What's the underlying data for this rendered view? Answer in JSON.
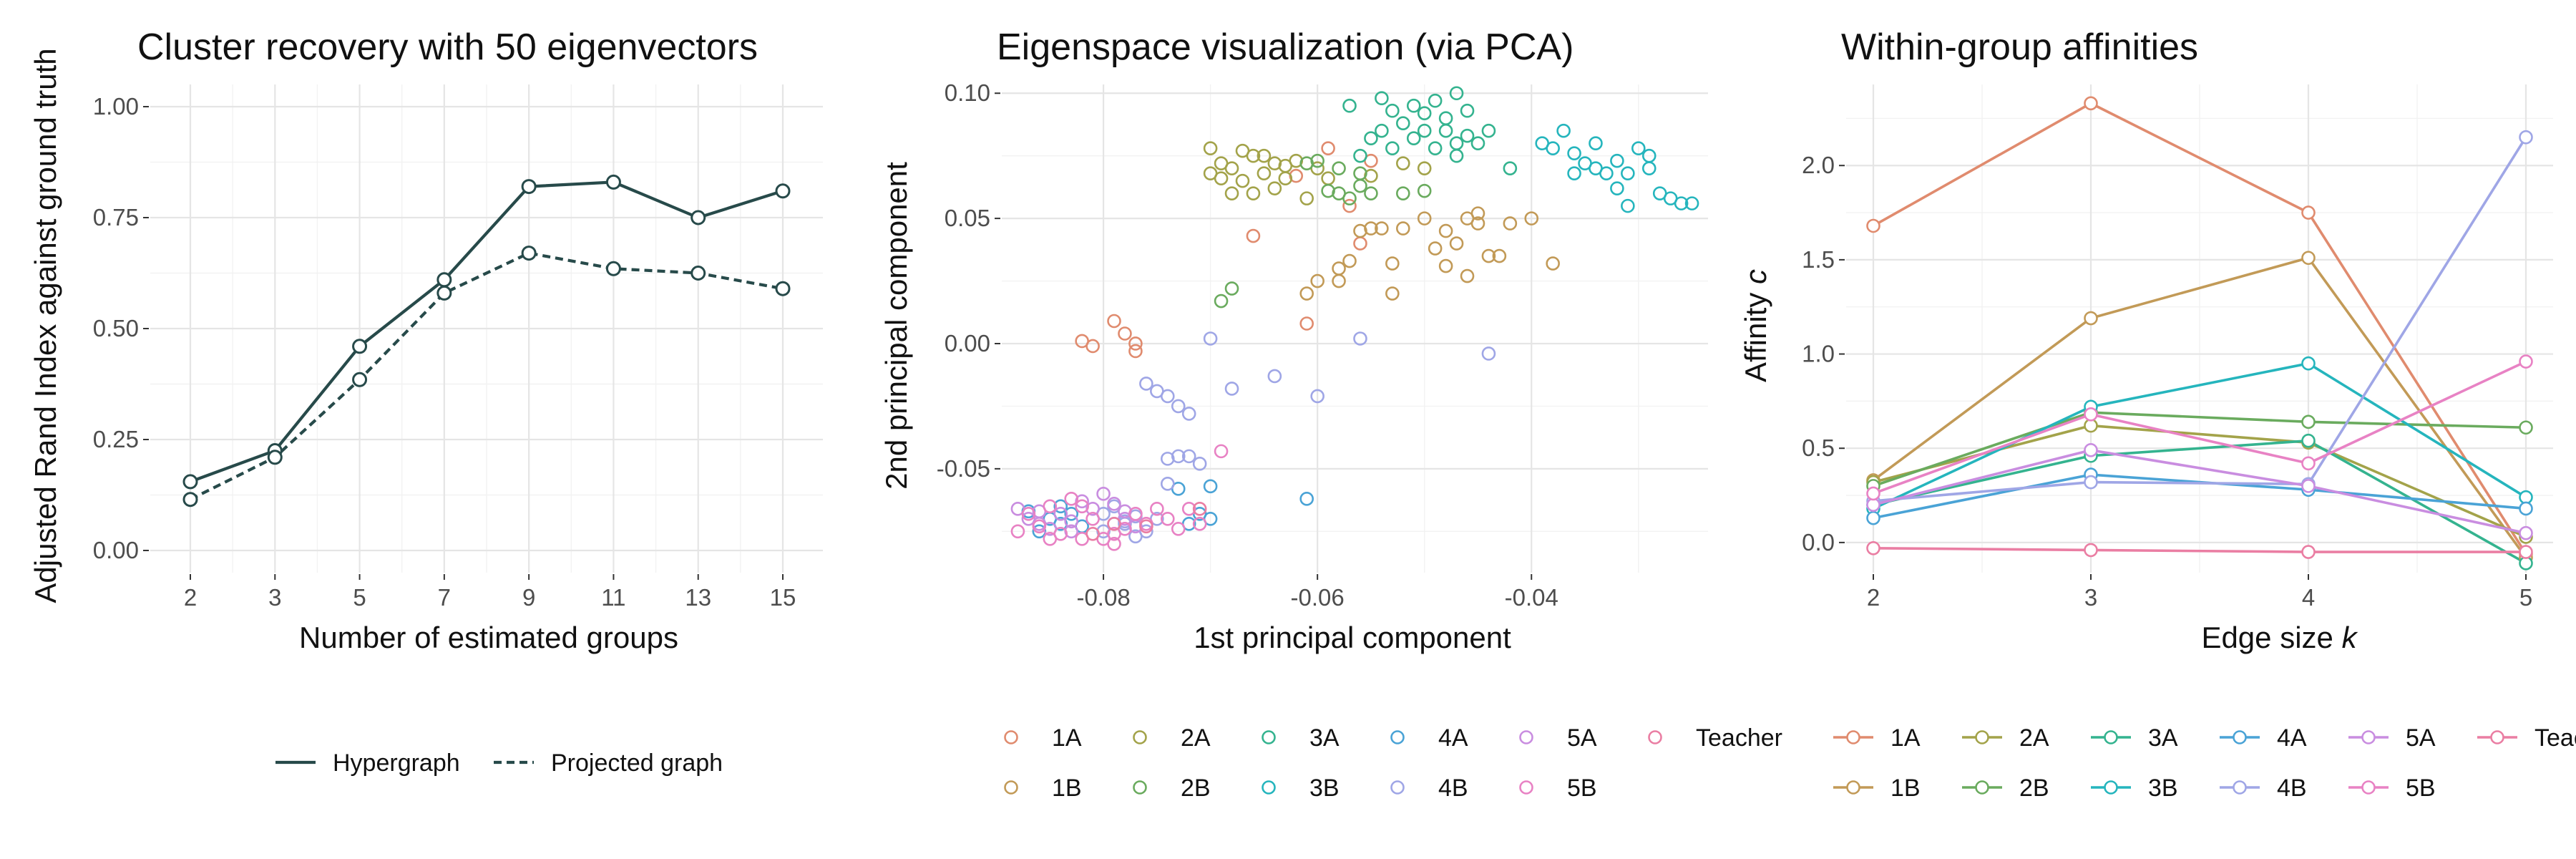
{
  "chart_data": [
    {
      "type": "line",
      "title": "Cluster recovery with 50 eigenvectors",
      "xlabel": "Number of estimated groups",
      "ylabel": "Adjusted Rand Index against ground truth",
      "categories": [
        "2",
        "3",
        "5",
        "7",
        "9",
        "11",
        "13",
        "15"
      ],
      "ylim": [
        -0.05,
        1.05
      ],
      "yticks": [
        "0.00",
        "0.25",
        "0.50",
        "0.75",
        "1.00"
      ],
      "highlight_category": "11",
      "color": "#274a4a",
      "grid": true,
      "legend_position": "bottom",
      "series": [
        {
          "name": "Hypergraph",
          "line": "solid",
          "values": [
            0.155,
            0.225,
            0.46,
            0.61,
            0.82,
            0.83,
            0.75,
            0.81
          ]
        },
        {
          "name": "Projected graph",
          "line": "dashed",
          "values": [
            0.115,
            0.21,
            0.385,
            0.58,
            0.67,
            0.635,
            0.625,
            0.59
          ]
        }
      ]
    },
    {
      "type": "scatter",
      "title": "Eigenspace visualization (via PCA)",
      "xlabel": "1st principal component",
      "ylabel": "2nd principal component",
      "xlim": [
        -0.0895,
        -0.0235
      ],
      "ylim": [
        -0.0915,
        0.1035
      ],
      "xticks": [
        "-0.08",
        "-0.06",
        "-0.04"
      ],
      "yticks": [
        "-0.05",
        "0.00",
        "0.05",
        "0.10"
      ],
      "grid": true,
      "legend_position": "bottom",
      "series": [
        {
          "name": "1A",
          "color": "#e08b6e",
          "points": [
            [
              -0.082,
              0.001
            ],
            [
              -0.079,
              0.009
            ],
            [
              -0.078,
              0.004
            ],
            [
              -0.077,
              0.0
            ],
            [
              -0.077,
              -0.003
            ],
            [
              -0.081,
              -0.001
            ],
            [
              -0.059,
              0.078
            ],
            [
              -0.057,
              0.055
            ],
            [
              -0.055,
              0.073
            ],
            [
              -0.061,
              0.008
            ],
            [
              -0.056,
              0.04
            ],
            [
              -0.066,
              0.043
            ],
            [
              -0.062,
              0.067
            ]
          ]
        },
        {
          "name": "1B",
          "color": "#c29a57",
          "points": [
            [
              -0.055,
              0.046
            ],
            [
              -0.052,
              0.046
            ],
            [
              -0.054,
              0.046
            ],
            [
              -0.048,
              0.045
            ],
            [
              -0.046,
              0.05
            ],
            [
              -0.045,
              0.048
            ],
            [
              -0.042,
              0.048
            ],
            [
              -0.044,
              0.035
            ],
            [
              -0.046,
              0.027
            ],
            [
              -0.049,
              0.038
            ],
            [
              -0.053,
              0.032
            ],
            [
              -0.058,
              0.03
            ],
            [
              -0.058,
              0.025
            ],
            [
              -0.061,
              0.02
            ],
            [
              -0.053,
              0.02
            ],
            [
              -0.038,
              0.032
            ],
            [
              -0.04,
              0.05
            ],
            [
              -0.047,
              0.04
            ],
            [
              -0.05,
              0.05
            ],
            [
              -0.043,
              0.035
            ],
            [
              -0.045,
              0.052
            ],
            [
              -0.056,
              0.045
            ],
            [
              -0.057,
              0.033
            ],
            [
              -0.06,
              0.025
            ],
            [
              -0.048,
              0.031
            ]
          ]
        },
        {
          "name": "2A",
          "color": "#a3a34a",
          "points": [
            [
              -0.07,
              0.078
            ],
            [
              -0.069,
              0.072
            ],
            [
              -0.068,
              0.07
            ],
            [
              -0.066,
              0.075
            ],
            [
              -0.065,
              0.068
            ],
            [
              -0.064,
              0.072
            ],
            [
              -0.063,
              0.066
            ],
            [
              -0.062,
              0.073
            ],
            [
              -0.06,
              0.07
            ],
            [
              -0.059,
              0.066
            ],
            [
              -0.067,
              0.065
            ],
            [
              -0.068,
              0.06
            ],
            [
              -0.066,
              0.06
            ],
            [
              -0.069,
              0.066
            ],
            [
              -0.064,
              0.062
            ],
            [
              -0.052,
              0.072
            ],
            [
              -0.05,
              0.07
            ],
            [
              -0.055,
              0.067
            ],
            [
              -0.061,
              0.058
            ],
            [
              -0.067,
              0.077
            ],
            [
              -0.065,
              0.075
            ],
            [
              -0.063,
              0.071
            ],
            [
              -0.07,
              0.068
            ]
          ]
        },
        {
          "name": "2B",
          "color": "#6aab5e",
          "points": [
            [
              -0.06,
              0.073
            ],
            [
              -0.058,
              0.07
            ],
            [
              -0.059,
              0.061
            ],
            [
              -0.058,
              0.06
            ],
            [
              -0.056,
              0.063
            ],
            [
              -0.057,
              0.058
            ],
            [
              -0.055,
              0.06
            ],
            [
              -0.052,
              0.06
            ],
            [
              -0.069,
              0.017
            ],
            [
              -0.068,
              0.022
            ],
            [
              -0.061,
              0.072
            ],
            [
              -0.056,
              0.068
            ],
            [
              -0.05,
              0.061
            ]
          ]
        },
        {
          "name": "3A",
          "color": "#34b38f",
          "points": [
            [
              -0.057,
              0.095
            ],
            [
              -0.054,
              0.098
            ],
            [
              -0.053,
              0.093
            ],
            [
              -0.052,
              0.088
            ],
            [
              -0.05,
              0.092
            ],
            [
              -0.049,
              0.097
            ],
            [
              -0.047,
              0.1
            ],
            [
              -0.048,
              0.085
            ],
            [
              -0.05,
              0.085
            ],
            [
              -0.046,
              0.083
            ],
            [
              -0.045,
              0.08
            ],
            [
              -0.047,
              0.08
            ],
            [
              -0.049,
              0.078
            ],
            [
              -0.051,
              0.082
            ],
            [
              -0.053,
              0.078
            ],
            [
              -0.055,
              0.082
            ],
            [
              -0.048,
              0.09
            ],
            [
              -0.044,
              0.085
            ],
            [
              -0.042,
              0.07
            ],
            [
              -0.046,
              0.093
            ],
            [
              -0.051,
              0.095
            ],
            [
              -0.054,
              0.085
            ],
            [
              -0.047,
              0.075
            ],
            [
              -0.056,
              0.075
            ]
          ]
        },
        {
          "name": "3B",
          "color": "#25b5bd",
          "points": [
            [
              -0.039,
              0.08
            ],
            [
              -0.037,
              0.085
            ],
            [
              -0.036,
              0.076
            ],
            [
              -0.035,
              0.072
            ],
            [
              -0.034,
              0.07
            ],
            [
              -0.033,
              0.068
            ],
            [
              -0.032,
              0.073
            ],
            [
              -0.031,
              0.068
            ],
            [
              -0.03,
              0.078
            ],
            [
              -0.029,
              0.075
            ],
            [
              -0.028,
              0.06
            ],
            [
              -0.027,
              0.058
            ],
            [
              -0.026,
              0.056
            ],
            [
              -0.025,
              0.056
            ],
            [
              -0.031,
              0.055
            ],
            [
              -0.036,
              0.068
            ],
            [
              -0.038,
              0.078
            ],
            [
              -0.034,
              0.08
            ],
            [
              -0.032,
              0.062
            ],
            [
              -0.029,
              0.07
            ]
          ]
        },
        {
          "name": "4A",
          "color": "#4aa3d6",
          "points": [
            [
              -0.087,
              -0.067
            ],
            [
              -0.085,
              -0.07
            ],
            [
              -0.084,
              -0.072
            ],
            [
              -0.083,
              -0.068
            ],
            [
              -0.082,
              -0.073
            ],
            [
              -0.086,
              -0.075
            ],
            [
              -0.073,
              -0.058
            ],
            [
              -0.07,
              -0.057
            ],
            [
              -0.071,
              -0.068
            ],
            [
              -0.07,
              -0.07
            ],
            [
              -0.061,
              -0.062
            ],
            [
              -0.084,
              -0.065
            ],
            [
              -0.072,
              -0.072
            ]
          ]
        },
        {
          "name": "4B",
          "color": "#9fa6e6",
          "points": [
            [
              -0.076,
              -0.016
            ],
            [
              -0.075,
              -0.019
            ],
            [
              -0.074,
              -0.021
            ],
            [
              -0.073,
              -0.025
            ],
            [
              -0.072,
              -0.028
            ],
            [
              -0.07,
              0.002
            ],
            [
              -0.068,
              -0.018
            ],
            [
              -0.064,
              -0.013
            ],
            [
              -0.06,
              -0.021
            ],
            [
              -0.056,
              0.002
            ],
            [
              -0.044,
              -0.004
            ],
            [
              -0.074,
              -0.046
            ],
            [
              -0.073,
              -0.045
            ],
            [
              -0.072,
              -0.045
            ],
            [
              -0.071,
              -0.048
            ],
            [
              -0.08,
              -0.068
            ],
            [
              -0.079,
              -0.072
            ],
            [
              -0.078,
              -0.072
            ],
            [
              -0.077,
              -0.069
            ],
            [
              -0.076,
              -0.075
            ],
            [
              -0.075,
              -0.07
            ],
            [
              -0.074,
              -0.056
            ],
            [
              -0.079,
              -0.065
            ],
            [
              -0.08,
              -0.075
            ],
            [
              -0.077,
              -0.077
            ],
            [
              -0.078,
              -0.071
            ]
          ]
        },
        {
          "name": "5A",
          "color": "#c98de0",
          "points": [
            [
              -0.088,
              -0.066
            ],
            [
              -0.087,
              -0.07
            ],
            [
              -0.086,
              -0.072
            ],
            [
              -0.085,
              -0.074
            ],
            [
              -0.084,
              -0.068
            ],
            [
              -0.083,
              -0.071
            ],
            [
              -0.082,
              -0.063
            ],
            [
              -0.081,
              -0.066
            ],
            [
              -0.08,
              -0.06
            ],
            [
              -0.079,
              -0.064
            ],
            [
              -0.078,
              -0.07
            ],
            [
              -0.077,
              -0.073
            ],
            [
              -0.086,
              -0.067
            ],
            [
              -0.083,
              -0.075
            ],
            [
              -0.078,
              -0.067
            ]
          ]
        },
        {
          "name": "5B",
          "color": "#e882c4",
          "points": [
            [
              -0.088,
              -0.075
            ],
            [
              -0.087,
              -0.068
            ],
            [
              -0.086,
              -0.073
            ],
            [
              -0.085,
              -0.078
            ],
            [
              -0.084,
              -0.076
            ],
            [
              -0.083,
              -0.062
            ],
            [
              -0.082,
              -0.078
            ],
            [
              -0.081,
              -0.07
            ],
            [
              -0.08,
              -0.078
            ],
            [
              -0.079,
              -0.08
            ],
            [
              -0.078,
              -0.074
            ],
            [
              -0.077,
              -0.068
            ],
            [
              -0.076,
              -0.072
            ],
            [
              -0.075,
              -0.066
            ],
            [
              -0.074,
              -0.07
            ],
            [
              -0.073,
              -0.074
            ],
            [
              -0.072,
              -0.066
            ],
            [
              -0.071,
              -0.072
            ],
            [
              -0.069,
              -0.043
            ],
            [
              -0.082,
              -0.065
            ],
            [
              -0.085,
              -0.065
            ],
            [
              -0.079,
              -0.076
            ]
          ]
        },
        {
          "name": "Teacher",
          "color": "#ea7ea3",
          "points": [
            [
              -0.079,
              -0.072
            ],
            [
              -0.081,
              -0.076
            ],
            [
              -0.071,
              -0.066
            ],
            [
              -0.076,
              -0.073
            ]
          ]
        }
      ]
    },
    {
      "type": "line",
      "title": "Within-group affinities",
      "xlabel": "Edge size k",
      "ylabel": "Affinity c",
      "categories": [
        "2",
        "3",
        "4",
        "5"
      ],
      "ylim": [
        -0.16,
        2.43
      ],
      "yticks": [
        "0.0",
        "0.5",
        "1.0",
        "1.5",
        "2.0"
      ],
      "grid": true,
      "legend_position": "bottom",
      "series": [
        {
          "name": "1A",
          "color": "#e08b6e",
          "values": [
            1.68,
            2.33,
            1.75,
            -0.06
          ]
        },
        {
          "name": "1B",
          "color": "#c29a57",
          "values": [
            0.33,
            1.19,
            1.51,
            -0.08
          ]
        },
        {
          "name": "2A",
          "color": "#a3a34a",
          "values": [
            0.32,
            0.62,
            0.53,
            0.03
          ]
        },
        {
          "name": "2B",
          "color": "#6aab5e",
          "values": [
            0.3,
            0.69,
            0.64,
            0.61
          ]
        },
        {
          "name": "3A",
          "color": "#34b38f",
          "values": [
            0.2,
            0.46,
            0.54,
            -0.11
          ]
        },
        {
          "name": "3B",
          "color": "#25b5bd",
          "values": [
            0.18,
            0.72,
            0.95,
            0.24
          ]
        },
        {
          "name": "4A",
          "color": "#4aa3d6",
          "values": [
            0.13,
            0.36,
            0.28,
            0.18
          ]
        },
        {
          "name": "4B",
          "color": "#9fa6e6",
          "values": [
            0.22,
            0.32,
            0.31,
            2.15
          ]
        },
        {
          "name": "5A",
          "color": "#c98de0",
          "values": [
            0.2,
            0.49,
            0.3,
            0.05
          ]
        },
        {
          "name": "5B",
          "color": "#e882c4",
          "values": [
            0.26,
            0.68,
            0.42,
            0.96
          ]
        },
        {
          "name": "Teachers",
          "color": "#ea7ea3",
          "values": [
            -0.03,
            -0.04,
            -0.05,
            -0.05
          ]
        }
      ]
    }
  ]
}
